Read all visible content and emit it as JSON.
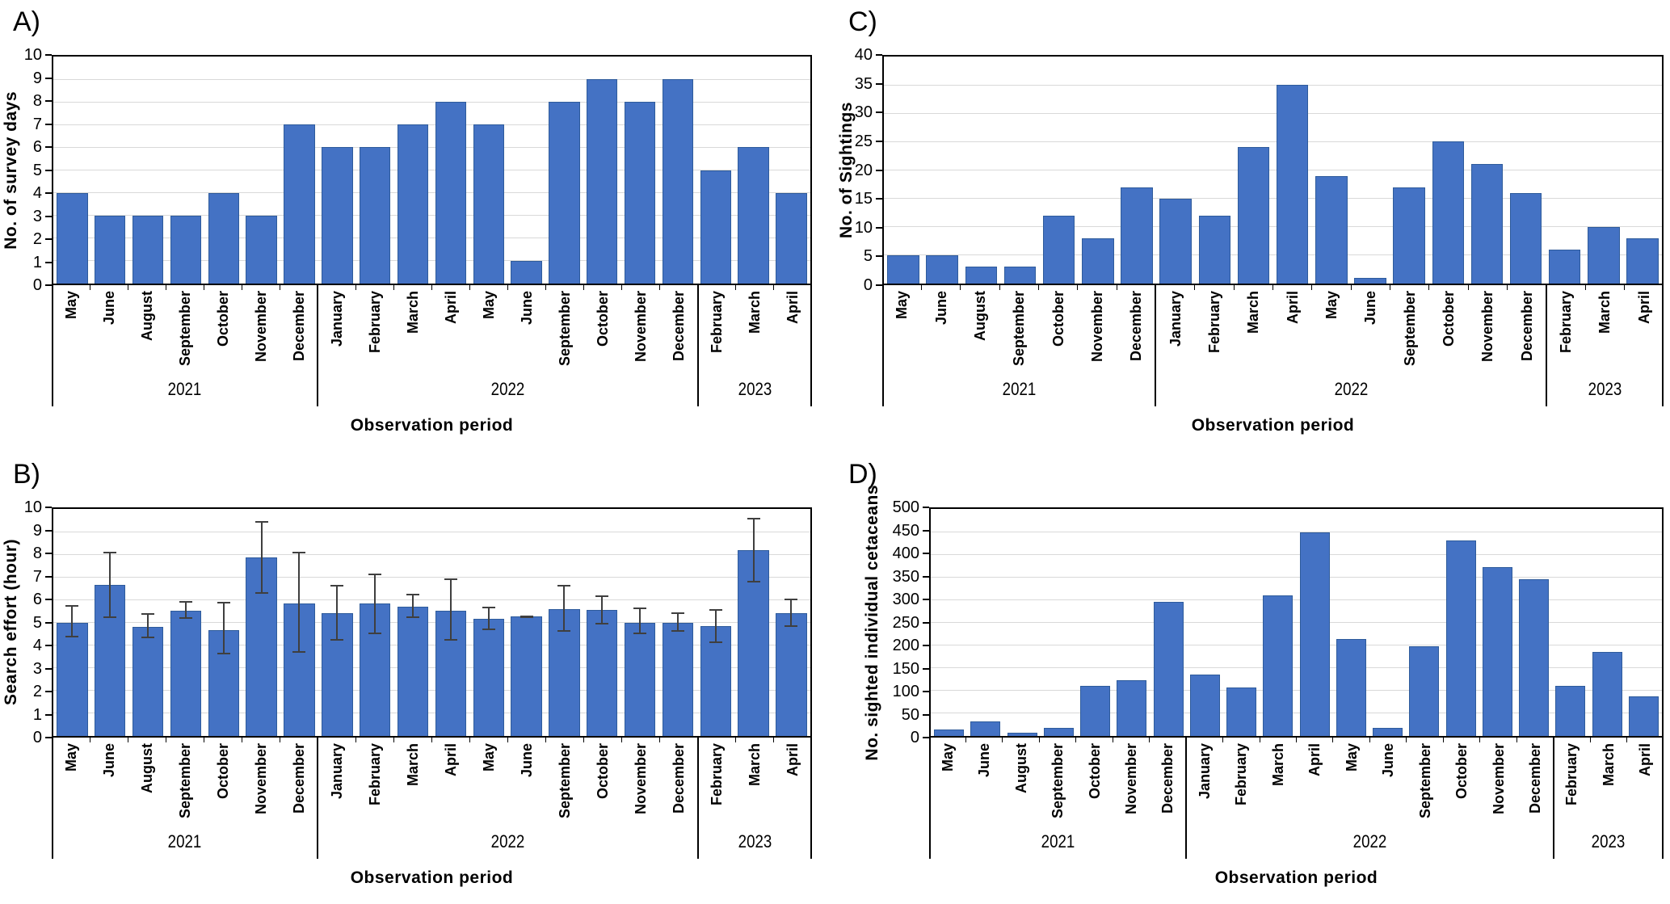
{
  "figure_title": "",
  "x_axis_title": "Observation period",
  "colors": {
    "bar_fill": "#4472C4",
    "bar_border": "#2E5B9B",
    "gridline": "#D9D9D9",
    "error_bar": "#3F3F3F",
    "axis": "#000000"
  },
  "chart_data": [
    {
      "panel": "A",
      "panel_label": "A)",
      "type": "bar",
      "title": "",
      "ylabel": "No. of survey days",
      "xlabel": "Observation period",
      "ylim": [
        0,
        10
      ],
      "yticks": [
        0,
        1,
        2,
        3,
        4,
        5,
        6,
        7,
        8,
        9,
        10
      ],
      "grid": true,
      "categories": [
        "May",
        "June",
        "August",
        "September",
        "October",
        "November",
        "December",
        "January",
        "February",
        "March",
        "April",
        "May",
        "June",
        "September",
        "October",
        "November",
        "December",
        "February",
        "March",
        "April"
      ],
      "year_groups": [
        {
          "label": "2021",
          "months": 7
        },
        {
          "label": "2022",
          "months": 10
        },
        {
          "label": "2023",
          "months": 3
        }
      ],
      "values": [
        4,
        3,
        3,
        3,
        4,
        3,
        7,
        6,
        6,
        7,
        8,
        7,
        1,
        8,
        9,
        8,
        9,
        5,
        6,
        4
      ]
    },
    {
      "panel": "B",
      "panel_label": "B)",
      "type": "bar",
      "title": "",
      "ylabel": "Search effort (hour)",
      "xlabel": "Observation period",
      "ylim": [
        0,
        10
      ],
      "yticks": [
        0,
        1,
        2,
        3,
        4,
        5,
        6,
        7,
        8,
        9,
        10
      ],
      "grid": true,
      "categories": [
        "May",
        "June",
        "August",
        "September",
        "October",
        "November",
        "December",
        "January",
        "February",
        "March",
        "April",
        "May",
        "June",
        "September",
        "October",
        "November",
        "December",
        "February",
        "March",
        "April"
      ],
      "year_groups": [
        {
          "label": "2021",
          "months": 7
        },
        {
          "label": "2022",
          "months": 10
        },
        {
          "label": "2023",
          "months": 3
        }
      ],
      "values": [
        5.0,
        6.65,
        4.8,
        5.5,
        4.65,
        7.85,
        5.85,
        5.4,
        5.85,
        5.7,
        5.5,
        5.15,
        5.25,
        5.6,
        5.55,
        5.0,
        5.0,
        4.85,
        8.2,
        5.4
      ],
      "error_low": [
        4.35,
        5.2,
        4.3,
        5.15,
        3.6,
        6.25,
        3.65,
        4.2,
        4.5,
        5.2,
        4.2,
        4.65,
        5.2,
        4.6,
        4.9,
        4.5,
        4.6,
        4.1,
        6.75,
        4.8
      ],
      "error_high": [
        5.75,
        8.1,
        5.4,
        5.95,
        5.9,
        9.45,
        8.1,
        6.65,
        7.15,
        6.25,
        6.95,
        5.7,
        5.3,
        6.65,
        6.2,
        5.65,
        5.45,
        5.6,
        9.6,
        6.05
      ]
    },
    {
      "panel": "C",
      "panel_label": "C)",
      "type": "bar",
      "title": "",
      "ylabel": "No. of Sightings",
      "xlabel": "Observation period",
      "ylim": [
        0,
        40
      ],
      "yticks": [
        0,
        5,
        10,
        15,
        20,
        25,
        30,
        35,
        40
      ],
      "grid": true,
      "categories": [
        "May",
        "June",
        "August",
        "September",
        "October",
        "November",
        "December",
        "January",
        "February",
        "March",
        "April",
        "May",
        "June",
        "September",
        "October",
        "November",
        "December",
        "February",
        "March",
        "April"
      ],
      "year_groups": [
        {
          "label": "2021",
          "months": 7
        },
        {
          "label": "2022",
          "months": 10
        },
        {
          "label": "2023",
          "months": 3
        }
      ],
      "values": [
        5,
        5,
        3,
        3,
        12,
        8,
        17,
        15,
        12,
        24,
        35,
        19,
        1,
        17,
        25,
        21,
        16,
        6,
        10,
        8
      ]
    },
    {
      "panel": "D",
      "panel_label": "D)",
      "type": "bar",
      "title": "",
      "ylabel": "No. sighted individual cetaceans",
      "xlabel": "Observation period",
      "ylim": [
        0,
        500
      ],
      "yticks": [
        0,
        50,
        100,
        150,
        200,
        250,
        300,
        350,
        400,
        450,
        500
      ],
      "grid": true,
      "categories": [
        "May",
        "June",
        "August",
        "September",
        "October",
        "November",
        "December",
        "January",
        "February",
        "March",
        "April",
        "May",
        "June",
        "September",
        "October",
        "November",
        "December",
        "February",
        "March",
        "April"
      ],
      "year_groups": [
        {
          "label": "2021",
          "months": 7
        },
        {
          "label": "2022",
          "months": 10
        },
        {
          "label": "2023",
          "months": 3
        }
      ],
      "values": [
        15,
        32,
        8,
        18,
        110,
        123,
        295,
        135,
        107,
        310,
        448,
        213,
        18,
        198,
        430,
        372,
        345,
        110,
        185,
        88
      ]
    }
  ]
}
